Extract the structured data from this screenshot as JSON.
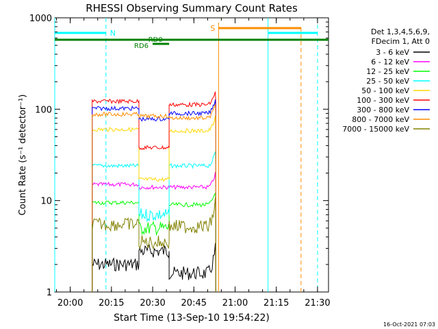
{
  "chart_data": {
    "type": "line",
    "title": "RHESSI Observing Summary Count Rates",
    "xlabel": "Start Time (13-Sep-10 19:54:22)",
    "ylabel": "Count Rate (s⁻¹ detector⁻¹)",
    "y_scale": "log",
    "ylim": [
      1,
      1000
    ],
    "xlim": [
      "19:54:22",
      "21:34:00"
    ],
    "x_ticks": [
      "20:00",
      "20:15",
      "20:30",
      "20:45",
      "21:00",
      "21:15",
      "21:30"
    ],
    "y_ticks": [
      "1",
      "10",
      "100",
      "1000"
    ],
    "legend_header": [
      "Det 1,3,4,5,6,9,",
      "FDecim 1, Att 0"
    ],
    "legend_position": "right",
    "footer_stamp": "16-Oct-2021 07:03",
    "annotations": {
      "night_label": "N",
      "saa_label": "S",
      "rd0_label": "RD0",
      "rd6_label": "RD6"
    },
    "markers": {
      "night_intervals": [
        [
          "19:54:22",
          "20:13"
        ],
        [
          "21:12",
          "21:30"
        ]
      ],
      "saa_start": "20:54",
      "saa_interval": [
        "20:54",
        "21:24"
      ],
      "decimation_bar": [
        "19:54:22",
        "21:34"
      ],
      "rd0_interval": [
        "20:26",
        "20:36"
      ],
      "rd6_interval": [
        "20:30",
        "20:36"
      ],
      "cyan_dashed_times": [
        "20:13",
        "21:30"
      ],
      "cyan_solid_times": [
        "19:54:22",
        "21:12"
      ],
      "orange_dashed_times": [
        "21:24"
      ]
    },
    "segments": [
      [
        "20:08",
        "20:25"
      ],
      [
        "20:25",
        "20:36"
      ],
      [
        "20:36",
        "20:53"
      ]
    ],
    "series": [
      {
        "name": "3 - 6 keV",
        "color": "#000000",
        "values": [
          2.0,
          2.8,
          1.6
        ]
      },
      {
        "name": "6 - 12 keV",
        "color": "#ff00ff",
        "values": [
          15,
          14,
          14
        ]
      },
      {
        "name": "12 - 25 keV",
        "color": "#00ff00",
        "values": [
          9.5,
          5.0,
          9.0
        ]
      },
      {
        "name": "25 - 50 keV",
        "color": "#00ffff",
        "values": [
          24,
          7.0,
          24
        ]
      },
      {
        "name": "50 - 100 keV",
        "color": "#ffd700",
        "values": [
          60,
          17,
          58
        ]
      },
      {
        "name": "100 - 300 keV",
        "color": "#ff0000",
        "values": [
          122,
          38,
          112
        ]
      },
      {
        "name": "300 - 800 keV",
        "color": "#0000ff",
        "values": [
          102,
          78,
          90
        ]
      },
      {
        "name": "800 - 7000 keV",
        "color": "#ff8c00",
        "values": [
          88,
          84,
          80
        ]
      },
      {
        "name": "7000 - 15000 keV",
        "color": "#808000",
        "values": [
          5.5,
          3.5,
          5.2
        ]
      }
    ]
  }
}
